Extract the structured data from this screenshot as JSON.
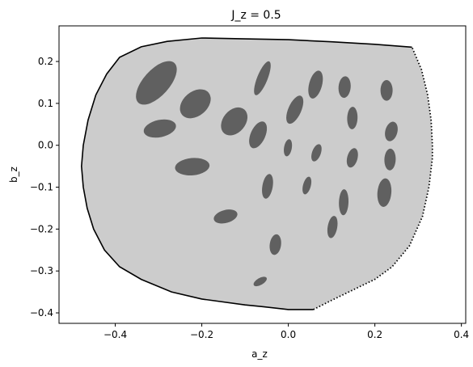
{
  "chart_data": {
    "type": "scatter",
    "title": "J_z = 0.5",
    "xlabel": "a_z",
    "ylabel": "b_z",
    "xlim": [
      -0.53,
      0.41
    ],
    "ylim": [
      -0.425,
      0.285
    ],
    "xticks": [
      "−0.4",
      "−0.2",
      "0.0",
      "0.2",
      "0.4"
    ],
    "xtick_values": [
      -0.4,
      -0.2,
      0.0,
      0.2,
      0.4
    ],
    "yticks": [
      "−0.4",
      "−0.3",
      "−0.2",
      "−0.1",
      "0.0",
      "0.1",
      "0.2"
    ],
    "ytick_values": [
      -0.4,
      -0.3,
      -0.2,
      -0.1,
      0.0,
      0.1,
      0.2
    ],
    "grid": false,
    "colors": {
      "region_fill": "#cccccc",
      "ellipse_fill": "#606060",
      "boundary": "#000000"
    },
    "region": {
      "solid_boundary": [
        [
          0.286,
          0.234
        ],
        [
          0.2,
          0.241
        ],
        [
          0.1,
          0.247
        ],
        [
          0.0,
          0.252
        ],
        [
          -0.1,
          0.254
        ],
        [
          -0.2,
          0.256
        ],
        [
          -0.28,
          0.248
        ],
        [
          -0.34,
          0.235
        ],
        [
          -0.39,
          0.21
        ],
        [
          -0.42,
          0.17
        ],
        [
          -0.445,
          0.12
        ],
        [
          -0.463,
          0.06
        ],
        [
          -0.474,
          0.0
        ],
        [
          -0.478,
          -0.05
        ],
        [
          -0.474,
          -0.1
        ],
        [
          -0.465,
          -0.15
        ],
        [
          -0.45,
          -0.2
        ],
        [
          -0.425,
          -0.25
        ],
        [
          -0.39,
          -0.29
        ],
        [
          -0.34,
          -0.32
        ],
        [
          -0.27,
          -0.35
        ],
        [
          -0.2,
          -0.367
        ],
        [
          -0.1,
          -0.381
        ],
        [
          -0.06,
          -0.385
        ],
        [
          0.0,
          -0.392
        ],
        [
          0.058,
          -0.392
        ]
      ],
      "dotted_boundary": [
        [
          0.058,
          -0.392
        ],
        [
          0.1,
          -0.37
        ],
        [
          0.15,
          -0.345
        ],
        [
          0.2,
          -0.32
        ],
        [
          0.24,
          -0.29
        ],
        [
          0.28,
          -0.24
        ],
        [
          0.31,
          -0.17
        ],
        [
          0.325,
          -0.1
        ],
        [
          0.333,
          -0.03
        ],
        [
          0.333,
          0.0
        ],
        [
          0.33,
          0.06
        ],
        [
          0.322,
          0.12
        ],
        [
          0.308,
          0.18
        ],
        [
          0.286,
          0.234
        ]
      ]
    },
    "ellipses": [
      {
        "cx": -0.305,
        "cy": 0.149,
        "rx": 0.062,
        "ry": 0.03,
        "angle_deg": -48
      },
      {
        "cx": -0.215,
        "cy": 0.099,
        "rx": 0.04,
        "ry": 0.028,
        "angle_deg": -40
      },
      {
        "cx": -0.297,
        "cy": 0.04,
        "rx": 0.038,
        "ry": 0.02,
        "angle_deg": -12
      },
      {
        "cx": -0.125,
        "cy": 0.057,
        "rx": 0.036,
        "ry": 0.026,
        "angle_deg": -50
      },
      {
        "cx": -0.06,
        "cy": 0.16,
        "rx": 0.042,
        "ry": 0.012,
        "angle_deg": -68
      },
      {
        "cx": -0.07,
        "cy": 0.025,
        "rx": 0.033,
        "ry": 0.017,
        "angle_deg": -66
      },
      {
        "cx": -0.222,
        "cy": -0.051,
        "rx": 0.04,
        "ry": 0.02,
        "angle_deg": -5
      },
      {
        "cx": 0.015,
        "cy": 0.085,
        "rx": 0.035,
        "ry": 0.015,
        "angle_deg": -66
      },
      {
        "cx": 0.063,
        "cy": 0.145,
        "rx": 0.033,
        "ry": 0.015,
        "angle_deg": -75
      },
      {
        "cx": 0.13,
        "cy": 0.139,
        "rx": 0.025,
        "ry": 0.014,
        "angle_deg": -85
      },
      {
        "cx": 0.227,
        "cy": 0.131,
        "rx": 0.024,
        "ry": 0.014,
        "angle_deg": -90
      },
      {
        "cx": 0.148,
        "cy": 0.065,
        "rx": 0.026,
        "ry": 0.012,
        "angle_deg": -88
      },
      {
        "cx": 0.238,
        "cy": 0.033,
        "rx": 0.023,
        "ry": 0.014,
        "angle_deg": -75
      },
      {
        "cx": -0.001,
        "cy": -0.006,
        "rx": 0.02,
        "ry": 0.009,
        "angle_deg": -80
      },
      {
        "cx": 0.065,
        "cy": -0.018,
        "rx": 0.021,
        "ry": 0.01,
        "angle_deg": -70
      },
      {
        "cx": 0.148,
        "cy": -0.03,
        "rx": 0.023,
        "ry": 0.012,
        "angle_deg": -75
      },
      {
        "cx": 0.235,
        "cy": -0.034,
        "rx": 0.025,
        "ry": 0.013,
        "angle_deg": -88
      },
      {
        "cx": -0.048,
        "cy": -0.098,
        "rx": 0.029,
        "ry": 0.012,
        "angle_deg": -80
      },
      {
        "cx": 0.043,
        "cy": -0.096,
        "rx": 0.021,
        "ry": 0.009,
        "angle_deg": -75
      },
      {
        "cx": 0.128,
        "cy": -0.136,
        "rx": 0.03,
        "ry": 0.011,
        "angle_deg": -88
      },
      {
        "cx": 0.222,
        "cy": -0.113,
        "rx": 0.033,
        "ry": 0.016,
        "angle_deg": -85
      },
      {
        "cx": -0.145,
        "cy": -0.17,
        "rx": 0.028,
        "ry": 0.015,
        "angle_deg": -15
      },
      {
        "cx": 0.102,
        "cy": -0.195,
        "rx": 0.026,
        "ry": 0.011,
        "angle_deg": -80
      },
      {
        "cx": -0.03,
        "cy": -0.237,
        "rx": 0.024,
        "ry": 0.013,
        "angle_deg": -82
      },
      {
        "cx": -0.065,
        "cy": -0.325,
        "rx": 0.017,
        "ry": 0.008,
        "angle_deg": -30
      }
    ]
  }
}
